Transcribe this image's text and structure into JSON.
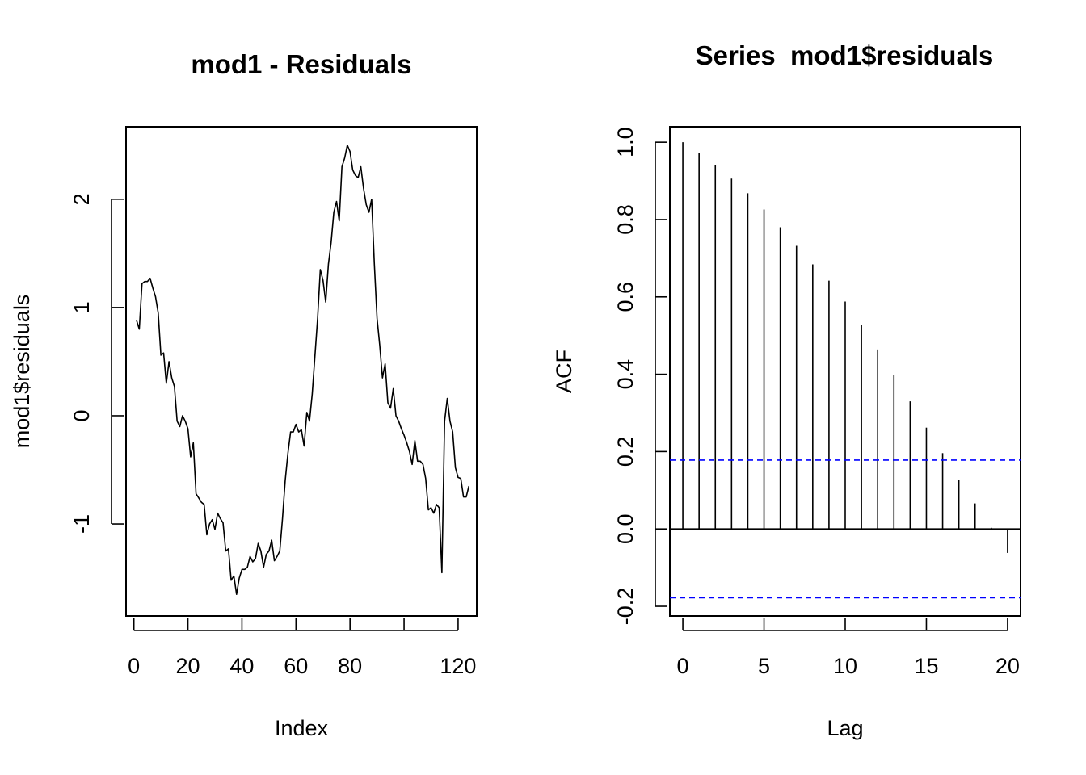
{
  "chart_data": [
    {
      "type": "line",
      "title": "mod1 - Residuals",
      "xlabel": "Index",
      "ylabel": "mod1$residuals",
      "xlim": [
        -2.9,
        126.9
      ],
      "ylim": [
        -1.85,
        2.67
      ],
      "x_ticks": [
        0,
        20,
        40,
        60,
        80,
        120
      ],
      "x_tick_labels": [
        "0",
        "20",
        "40",
        "60",
        "80",
        "120"
      ],
      "x_tick_marks": [
        0,
        20,
        40,
        60,
        80,
        100,
        120
      ],
      "y_ticks": [
        -1,
        0,
        1,
        2
      ],
      "y_tick_labels": [
        "-1",
        "0",
        "1",
        "2"
      ],
      "series": [
        {
          "name": "mod1$residuals",
          "color": "#000000",
          "values": [
            0.88,
            0.8,
            1.22,
            1.24,
            1.24,
            1.27,
            1.18,
            1.1,
            0.95,
            0.56,
            0.58,
            0.3,
            0.5,
            0.35,
            0.27,
            -0.05,
            -0.1,
            0.0,
            -0.05,
            -0.12,
            -0.38,
            -0.25,
            -0.72,
            -0.76,
            -0.8,
            -0.82,
            -1.1,
            -1.0,
            -0.96,
            -1.05,
            -0.9,
            -0.95,
            -0.99,
            -1.25,
            -1.23,
            -1.52,
            -1.48,
            -1.65,
            -1.5,
            -1.42,
            -1.42,
            -1.4,
            -1.3,
            -1.35,
            -1.32,
            -1.18,
            -1.25,
            -1.4,
            -1.28,
            -1.25,
            -1.15,
            -1.34,
            -1.3,
            -1.25,
            -0.95,
            -0.6,
            -0.35,
            -0.15,
            -0.15,
            -0.08,
            -0.15,
            -0.13,
            -0.28,
            0.03,
            -0.05,
            0.2,
            0.55,
            0.9,
            1.35,
            1.25,
            1.05,
            1.4,
            1.6,
            1.88,
            1.98,
            1.8,
            2.3,
            2.38,
            2.5,
            2.44,
            2.27,
            2.22,
            2.2,
            2.3,
            2.1,
            1.95,
            1.88,
            2.0,
            1.4,
            0.9,
            0.65,
            0.35,
            0.48,
            0.12,
            0.07,
            0.25,
            0.0,
            -0.05,
            -0.12,
            -0.18,
            -0.25,
            -0.33,
            -0.45,
            -0.23,
            -0.42,
            -0.42,
            -0.45,
            -0.58,
            -0.87,
            -0.85,
            -0.9,
            -0.82,
            -0.85,
            -1.45,
            -0.05,
            0.16,
            -0.05,
            -0.15,
            -0.48,
            -0.57,
            -0.58,
            -0.75,
            -0.75,
            -0.65
          ]
        }
      ]
    },
    {
      "type": "bar",
      "title": "Series  mod1$residuals",
      "xlabel": "Lag",
      "ylabel": "ACF",
      "xlim": [
        -0.8,
        20.8
      ],
      "ylim": [
        -0.225,
        1.04
      ],
      "x_ticks": [
        0,
        5,
        10,
        15,
        20
      ],
      "x_tick_labels": [
        "0",
        "5",
        "10",
        "15",
        "20"
      ],
      "y_ticks": [
        -0.2,
        0.0,
        0.2,
        0.4,
        0.6,
        0.8,
        1.0
      ],
      "y_tick_labels": [
        "-0.2",
        "0.0",
        "0.2",
        "0.4",
        "0.6",
        "0.8",
        "1.0"
      ],
      "lags": [
        0,
        1,
        2,
        3,
        4,
        5,
        6,
        7,
        8,
        9,
        10,
        11,
        12,
        13,
        14,
        15,
        16,
        17,
        18,
        19,
        20
      ],
      "values": [
        1.0,
        0.972,
        0.942,
        0.906,
        0.868,
        0.826,
        0.78,
        0.732,
        0.684,
        0.642,
        0.588,
        0.528,
        0.464,
        0.398,
        0.33,
        0.262,
        0.196,
        0.126,
        0.066,
        0.003,
        -0.062
      ],
      "confidence_bounds": [
        0.178,
        -0.178
      ],
      "bound_color": "#0000ff",
      "zero_line": true
    }
  ]
}
